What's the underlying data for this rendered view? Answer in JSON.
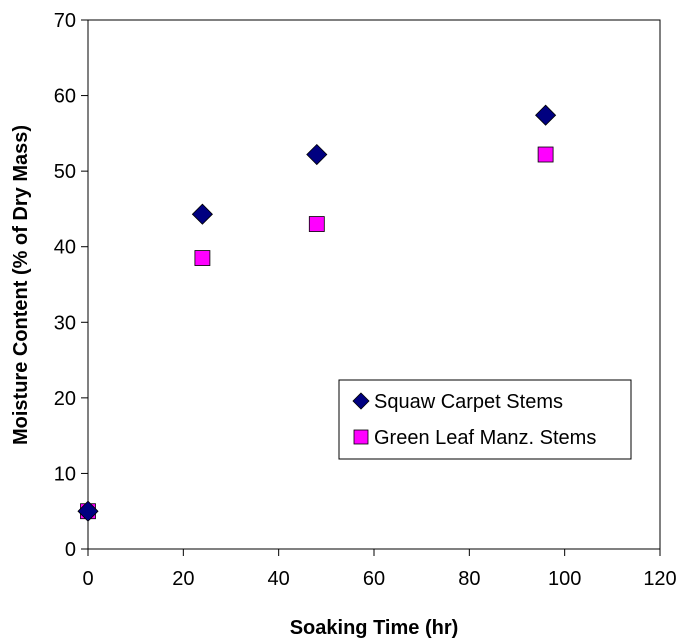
{
  "chart_data": {
    "type": "scatter",
    "title": "",
    "xlabel": "Soaking Time (hr)",
    "ylabel": "Moisture Content (% of Dry Mass)",
    "xlim": [
      0,
      120
    ],
    "ylim": [
      0,
      70
    ],
    "xticks": [
      0,
      20,
      40,
      60,
      80,
      100,
      120
    ],
    "yticks": [
      0,
      10,
      20,
      30,
      40,
      50,
      60,
      70
    ],
    "grid": false,
    "legend_position": "inside-right",
    "series": [
      {
        "name": "Squaw Carpet Stems",
        "marker": "diamond",
        "color": "#000080",
        "x": [
          0,
          24,
          48,
          96
        ],
        "y": [
          5.0,
          44.3,
          52.2,
          57.4
        ]
      },
      {
        "name": "Green Leaf Manz. Stems",
        "marker": "square",
        "color": "#ff00ff",
        "x": [
          0,
          24,
          48,
          96
        ],
        "y": [
          5.0,
          38.5,
          43.0,
          52.2
        ]
      }
    ]
  }
}
